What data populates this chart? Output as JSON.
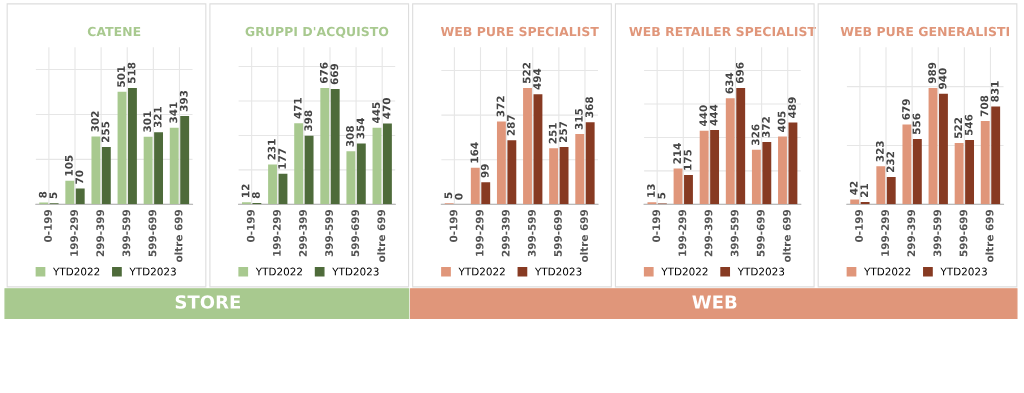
{
  "chart_data": [
    {
      "type": "bar",
      "title": "CATENE",
      "categories": [
        "0-199",
        "199-299",
        "299-399",
        "399-599",
        "599-699",
        "oltre 699"
      ],
      "series": [
        {
          "name": "YTD2022",
          "color": "#a8c98f",
          "values": [
            8,
            105,
            302,
            501,
            301,
            341
          ]
        },
        {
          "name": "YTD2023",
          "color": "#4e6b3a",
          "values": [
            5,
            70,
            255,
            518,
            321,
            393
          ]
        }
      ],
      "data_labels": true,
      "grid": true,
      "legend": "bottom",
      "tick_labels": "x",
      "annotations": [
        "STORE"
      ]
    },
    {
      "type": "bar",
      "title": "GRUPPI D'ACQUISTO",
      "categories": [
        "0-199",
        "199-299",
        "299-399",
        "399-599",
        "599-699",
        "oltre 699"
      ],
      "series": [
        {
          "name": "YTD2022",
          "color": "#a8c98f",
          "values": [
            12,
            231,
            471,
            676,
            308,
            445
          ]
        },
        {
          "name": "YTD2023",
          "color": "#4e6b3a",
          "values": [
            8,
            177,
            398,
            669,
            354,
            470
          ]
        }
      ],
      "data_labels": true,
      "grid": true,
      "legend": "bottom",
      "tick_labels": "x"
    },
    {
      "type": "bar",
      "title": "WEB PURE SPECIALIST",
      "categories": [
        "0-199",
        "199-299",
        "299-399",
        "399-599",
        "599-699",
        "oltre 699"
      ],
      "series": [
        {
          "name": "YTD2022",
          "color": "#e0967a",
          "values": [
            5,
            164,
            372,
            522,
            251,
            315
          ]
        },
        {
          "name": "YTD2023",
          "color": "#873a22",
          "values": [
            0,
            99,
            287,
            494,
            257,
            368
          ]
        }
      ],
      "data_labels": true,
      "grid": true,
      "legend": "bottom",
      "tick_labels": "x",
      "annotations": [
        "WEB"
      ]
    },
    {
      "type": "bar",
      "title": "WEB RETAILER SPECIALIST",
      "categories": [
        "0-199",
        "199-299",
        "299-399",
        "399-599",
        "599-699",
        "oltre 699"
      ],
      "series": [
        {
          "name": "YTD2022",
          "color": "#e0967a",
          "values": [
            13,
            214,
            440,
            634,
            326,
            405
          ]
        },
        {
          "name": "YTD2023",
          "color": "#873a22",
          "values": [
            5,
            175,
            444,
            696,
            372,
            489
          ]
        }
      ],
      "data_labels": true,
      "grid": true,
      "legend": "bottom",
      "tick_labels": "x"
    },
    {
      "type": "bar",
      "title": "WEB PURE GENERALISTI",
      "categories": [
        "0-199",
        "199-299",
        "299-399",
        "399-599",
        "599-699",
        "oltre 699"
      ],
      "series": [
        {
          "name": "YTD2022",
          "color": "#e0967a",
          "values": [
            42,
            323,
            679,
            989,
            522,
            708
          ]
        },
        {
          "name": "YTD2023",
          "color": "#873a22",
          "values": [
            21,
            232,
            556,
            940,
            546,
            831
          ]
        }
      ],
      "data_labels": true,
      "grid": true,
      "legend": "bottom",
      "tick_labels": "x"
    }
  ]
}
